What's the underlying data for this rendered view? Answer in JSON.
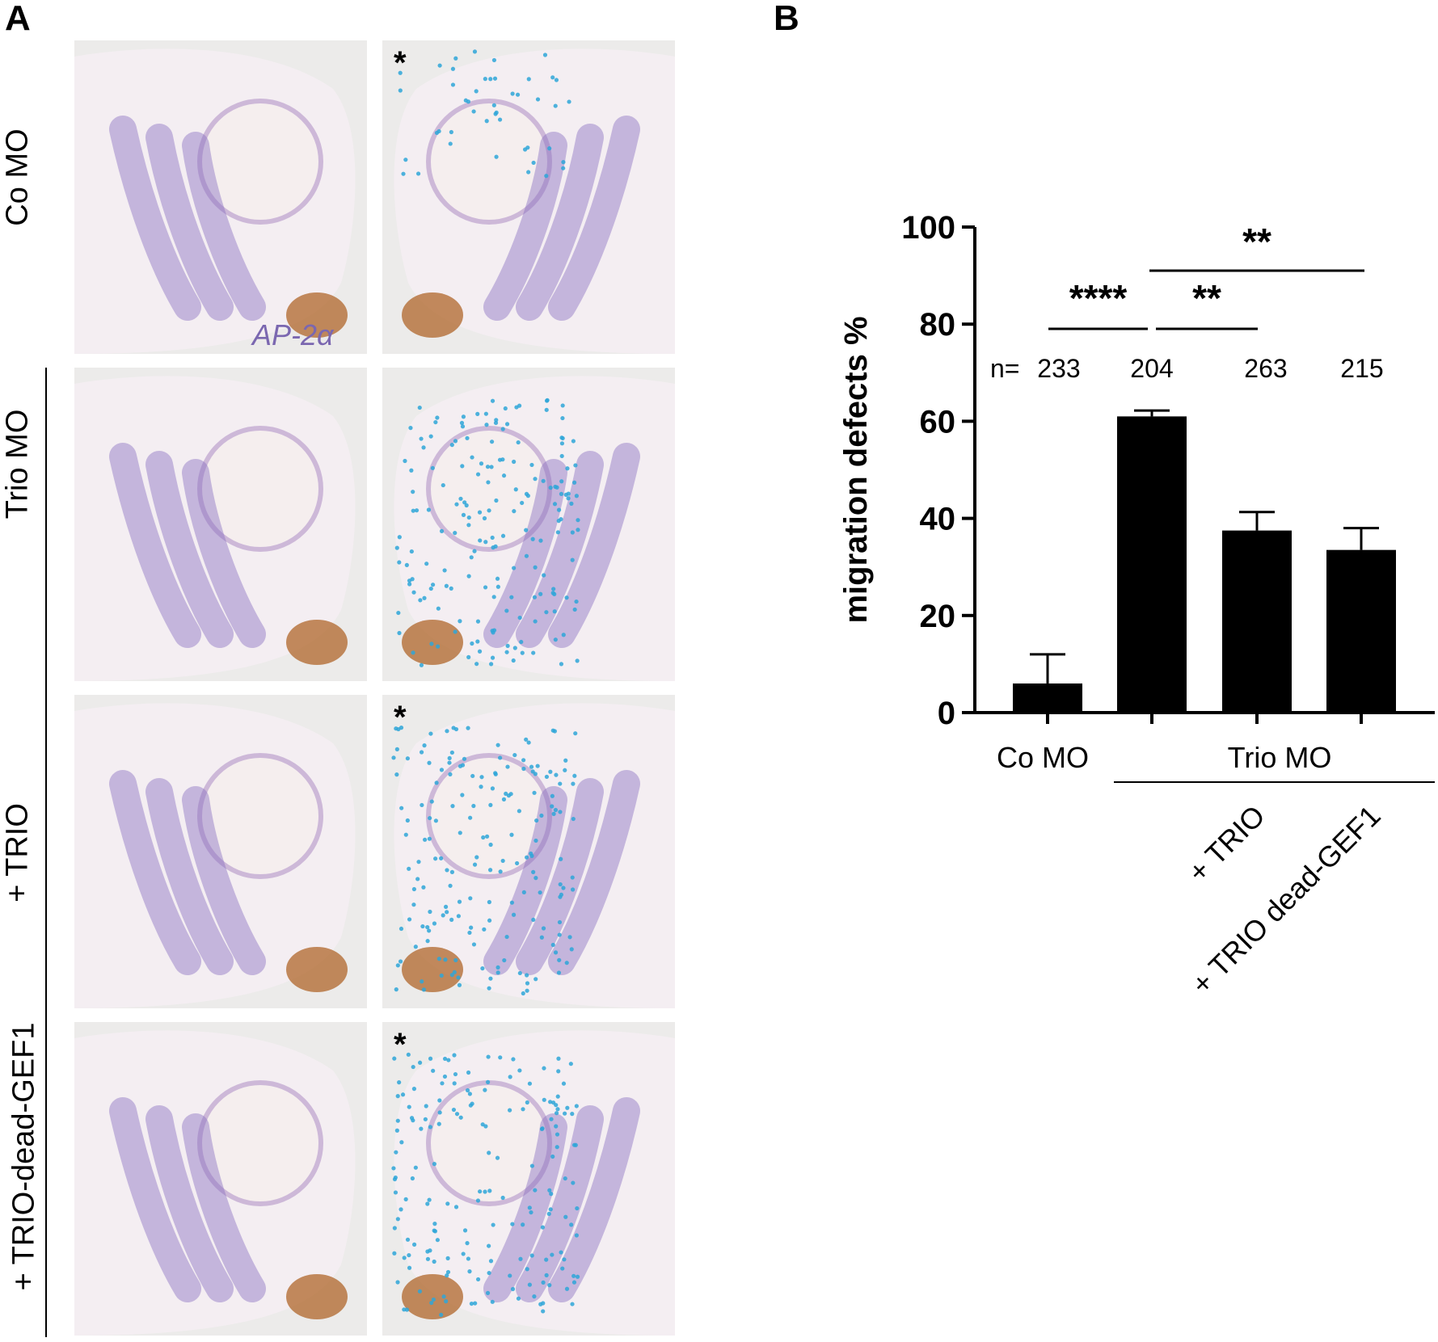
{
  "panel_a": {
    "letter": "A",
    "marker": "AP-2α",
    "asterisk": "*",
    "rows": [
      {
        "label": "Co MO",
        "left_asterisk": false,
        "right_asterisk": true
      },
      {
        "label": "Trio MO",
        "left_asterisk": false,
        "right_asterisk": false
      },
      {
        "label": "+ TRIO",
        "left_asterisk": false,
        "right_asterisk": true
      },
      {
        "label": "+ TRIO-dead-GEF1",
        "left_asterisk": false,
        "right_asterisk": true
      }
    ],
    "colors": {
      "tissue": "#f4eef2",
      "stain_purple": "#8a6fc0",
      "stain_blue": "#2ea6d8",
      "cement_gland": "#b0652a",
      "background": "#ecebea"
    }
  },
  "panel_b": {
    "letter": "B",
    "n_prefix": "n=",
    "group_label_co": "Co MO",
    "group_label_trio": "Trio MO",
    "rotated_labels": [
      "+ TRIO",
      "+ TRIO dead-GEF1"
    ]
  },
  "chart_data": {
    "type": "bar",
    "categories": [
      "Co MO",
      "Trio MO",
      "+ TRIO",
      "+ TRIO dead-GEF1"
    ],
    "values": [
      6,
      61,
      37.5,
      33.5
    ],
    "errors": [
      6,
      1.2,
      3.8,
      4.5
    ],
    "n_values": [
      "233",
      "204",
      "263",
      "215"
    ],
    "ylabel": "migration defects %",
    "ylim": [
      0,
      100
    ],
    "yticks": [
      0,
      20,
      40,
      60,
      80,
      100
    ],
    "significance": [
      {
        "from": "Co MO",
        "to": "Trio MO",
        "label": "****"
      },
      {
        "from": "Trio MO",
        "to": "+ TRIO",
        "label": "**"
      },
      {
        "from": "Trio MO",
        "to": "+ TRIO dead-GEF1",
        "label": "**"
      }
    ],
    "bar_color": "#000000",
    "grid": false
  }
}
